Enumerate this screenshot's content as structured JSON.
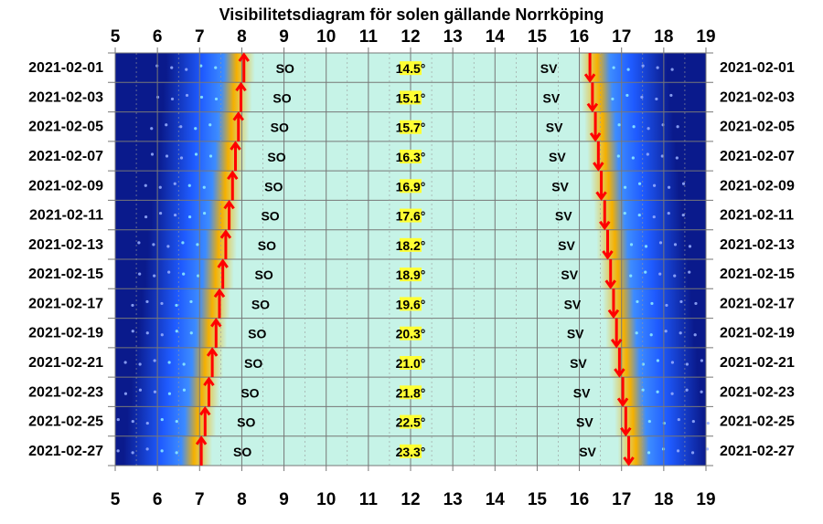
{
  "chart_data": {
    "type": "heatmap",
    "title": "Visibilitetsdiagram för solen gällande Norrköping",
    "x_ticks": [
      5,
      6,
      7,
      8,
      9,
      10,
      11,
      12,
      13,
      14,
      15,
      16,
      17,
      18,
      19
    ],
    "xlim": [
      5,
      19
    ],
    "grid": true,
    "rows": [
      {
        "date": "2021-02-01",
        "sunrise": 8.05,
        "sunset": 16.25,
        "max_altitude": "14.5°",
        "rise_dir": "SO",
        "set_dir": "SV"
      },
      {
        "date": "2021-02-03",
        "sunrise": 7.98,
        "sunset": 16.31,
        "max_altitude": "15.1°",
        "rise_dir": "SO",
        "set_dir": "SV"
      },
      {
        "date": "2021-02-05",
        "sunrise": 7.92,
        "sunset": 16.38,
        "max_altitude": "15.7°",
        "rise_dir": "SO",
        "set_dir": "SV"
      },
      {
        "date": "2021-02-07",
        "sunrise": 7.85,
        "sunset": 16.45,
        "max_altitude": "16.3°",
        "rise_dir": "SO",
        "set_dir": "SV"
      },
      {
        "date": "2021-02-09",
        "sunrise": 7.78,
        "sunset": 16.52,
        "max_altitude": "16.9°",
        "rise_dir": "SO",
        "set_dir": "SV"
      },
      {
        "date": "2021-02-11",
        "sunrise": 7.7,
        "sunset": 16.6,
        "max_altitude": "17.6°",
        "rise_dir": "SO",
        "set_dir": "SV"
      },
      {
        "date": "2021-02-13",
        "sunrise": 7.62,
        "sunset": 16.67,
        "max_altitude": "18.2°",
        "rise_dir": "SO",
        "set_dir": "SV"
      },
      {
        "date": "2021-02-15",
        "sunrise": 7.55,
        "sunset": 16.74,
        "max_altitude": "18.9°",
        "rise_dir": "SO",
        "set_dir": "SV"
      },
      {
        "date": "2021-02-17",
        "sunrise": 7.47,
        "sunset": 16.81,
        "max_altitude": "19.6°",
        "rise_dir": "SO",
        "set_dir": "SV"
      },
      {
        "date": "2021-02-19",
        "sunrise": 7.39,
        "sunset": 16.88,
        "max_altitude": "20.3°",
        "rise_dir": "SO",
        "set_dir": "SV"
      },
      {
        "date": "2021-02-21",
        "sunrise": 7.3,
        "sunset": 16.95,
        "max_altitude": "21.0°",
        "rise_dir": "SO",
        "set_dir": "SV"
      },
      {
        "date": "2021-02-23",
        "sunrise": 7.22,
        "sunset": 17.03,
        "max_altitude": "21.8°",
        "rise_dir": "SO",
        "set_dir": "SV"
      },
      {
        "date": "2021-02-25",
        "sunrise": 7.13,
        "sunset": 17.1,
        "max_altitude": "22.5°",
        "rise_dir": "SO",
        "set_dir": "SV"
      },
      {
        "date": "2021-02-27",
        "sunrise": 7.04,
        "sunset": 17.17,
        "max_altitude": "23.3°",
        "rise_dir": "SO",
        "set_dir": "SV"
      }
    ],
    "colors": {
      "night": "#0a1a8c",
      "twilight": "#1f5bff",
      "horizon": "#f5b000",
      "day": "#c6f3e7",
      "arrow": "#ff0000",
      "altitude_box": "#ffff33"
    }
  }
}
